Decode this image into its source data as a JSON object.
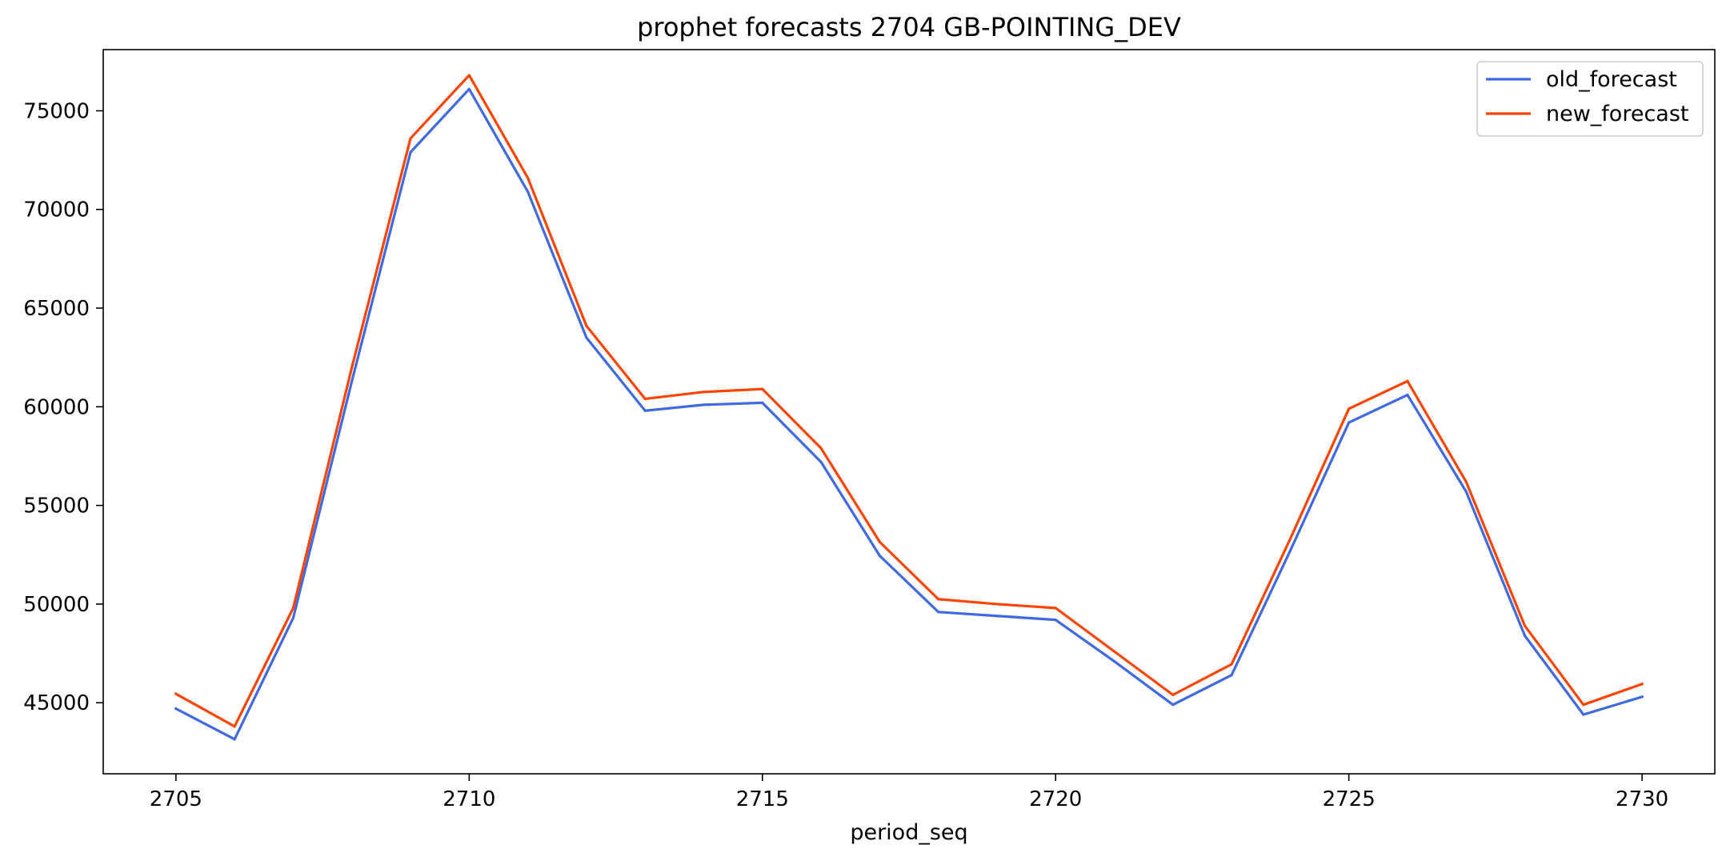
{
  "chart_data": {
    "type": "line",
    "title": "prophet forecasts 2704 GB-POINTING_DEV",
    "xlabel": "period_seq",
    "ylabel": "",
    "x": [
      2705,
      2706,
      2707,
      2708,
      2709,
      2710,
      2711,
      2712,
      2713,
      2714,
      2715,
      2716,
      2717,
      2718,
      2719,
      2720,
      2721,
      2722,
      2723,
      2724,
      2725,
      2726,
      2727,
      2728,
      2729,
      2730
    ],
    "xlim": [
      2703.76,
      2731.24
    ],
    "ylim": [
      41400,
      78100
    ],
    "x_ticks": [
      2705,
      2710,
      2715,
      2720,
      2725,
      2730
    ],
    "y_ticks": [
      45000,
      50000,
      55000,
      60000,
      65000,
      70000,
      75000
    ],
    "grid": false,
    "legend_position": "top-right",
    "series": [
      {
        "name": "old_forecast",
        "color": "#4169e1",
        "values": [
          44700,
          43150,
          49300,
          61300,
          72900,
          76100,
          70900,
          63500,
          59800,
          60100,
          60200,
          57200,
          52450,
          49600,
          49400,
          49200,
          47100,
          44900,
          46400,
          52700,
          59200,
          60600,
          55700,
          48400,
          44400,
          45300
        ]
      },
      {
        "name": "new_forecast",
        "color": "#ff4500",
        "values": [
          45450,
          43800,
          49800,
          62000,
          73600,
          76800,
          71600,
          64100,
          60400,
          60750,
          60900,
          57900,
          53150,
          50250,
          50000,
          49800,
          47600,
          45400,
          46950,
          53300,
          59900,
          61300,
          56200,
          48900,
          44900,
          45950
        ]
      }
    ]
  }
}
